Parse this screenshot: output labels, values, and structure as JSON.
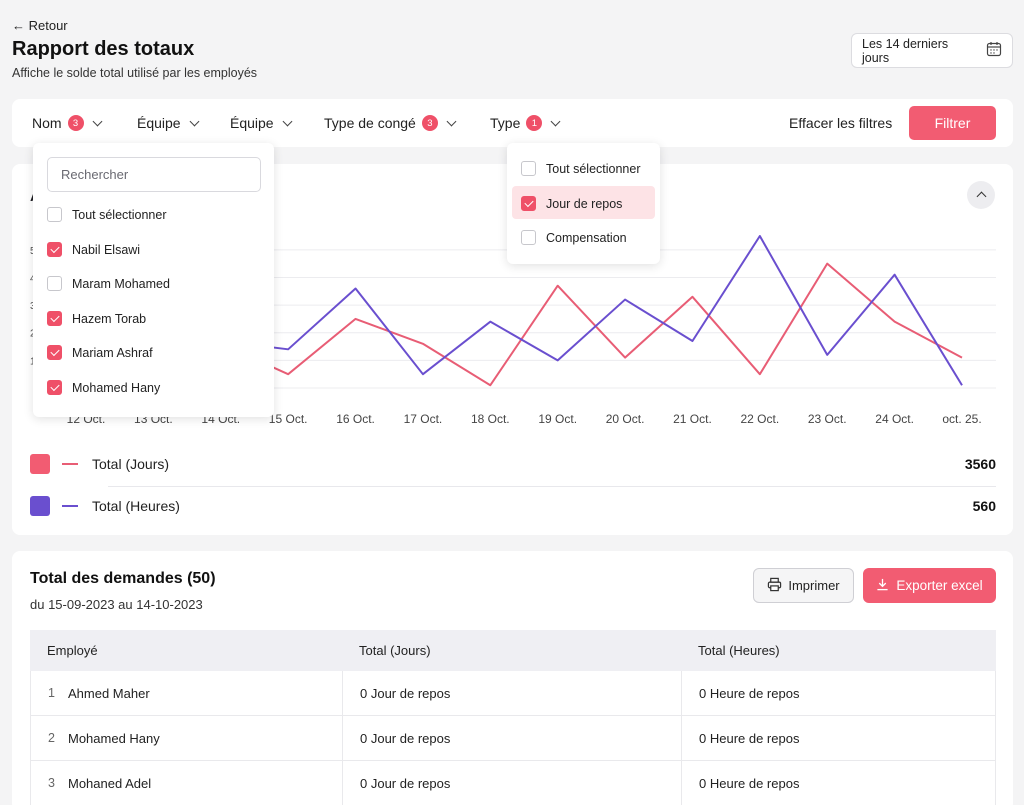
{
  "header": {
    "back_label": "← Retour",
    "title": "Rapport des totaux",
    "subtitle": "Affiche le solde total utilisé par les employés",
    "date_range_label": "Les 14 derniers jours"
  },
  "filters": {
    "items": [
      {
        "label": "Nom",
        "badge": "3"
      },
      {
        "label": "Équipe",
        "badge": ""
      },
      {
        "label": "Équipe",
        "badge": ""
      },
      {
        "label": "Type de congé",
        "badge": "3"
      },
      {
        "label": "Type",
        "badge": "1"
      }
    ],
    "clear_label": "Effacer les filtres",
    "apply_label": "Filtrer"
  },
  "name_dropdown": {
    "search_placeholder": "Rechercher",
    "options": [
      {
        "label": "Tout sélectionner",
        "checked": false
      },
      {
        "label": "Nabil Elsawi",
        "checked": true
      },
      {
        "label": "Maram Mohamed",
        "checked": false
      },
      {
        "label": "Hazem Torab",
        "checked": true
      },
      {
        "label": "Mariam Ashraf",
        "checked": true
      },
      {
        "label": "Mohamed Hany",
        "checked": true
      }
    ]
  },
  "type_dropdown": {
    "options": [
      {
        "label": "Tout sélectionner",
        "checked": false
      },
      {
        "label": "Jour de repos",
        "checked": true
      },
      {
        "label": "Compensation",
        "checked": false
      }
    ]
  },
  "chart_data": {
    "type": "line",
    "title": "",
    "x": [
      "12 Oct.",
      "13 Oct.",
      "14 Oct.",
      "15 Oct.",
      "16 Oct.",
      "17 Oct.",
      "18 Oct.",
      "19 Oct.",
      "20 Oct.",
      "21 Oct.",
      "22 Oct.",
      "23 Oct.",
      "24 Oct.",
      "oct. 25."
    ],
    "yticks_visible": [
      "5",
      "4",
      "3",
      "2",
      "1"
    ],
    "ylim": [
      0,
      5.5
    ],
    "grid": true,
    "legend": "bottom",
    "series": [
      {
        "name": "Total (Jours)",
        "color": "#e85d75",
        "values": [
          null,
          null,
          1.6,
          0.5,
          2.5,
          1.6,
          0.1,
          3.7,
          1.1,
          3.3,
          0.5,
          4.5,
          2.4,
          1.1
        ]
      },
      {
        "name": "Total (Heures)",
        "color": "#6a4fcf",
        "values": [
          null,
          null,
          1.7,
          1.4,
          3.6,
          0.5,
          2.4,
          1.0,
          3.2,
          1.7,
          5.5,
          1.2,
          4.1,
          0.1
        ]
      }
    ]
  },
  "chart_legend": [
    {
      "label": "Total (Jours)",
      "total": "3560",
      "color": "#f25c72"
    },
    {
      "label": "Total (Heures)",
      "total": "560",
      "color": "#6a4fcf"
    }
  ],
  "requests": {
    "title": "Total des demandes (50)",
    "range": "du 15-09-2023 au 14-10-2023",
    "print_label": "Imprimer",
    "export_label": "Exporter excel",
    "columns": [
      "Employé",
      "Total (Jours)",
      "Total (Heures)"
    ],
    "rows": [
      {
        "num": "1",
        "name": "Ahmed Maher",
        "days": "0 Jour de repos",
        "hours": "0 Heure de repos"
      },
      {
        "num": "2",
        "name": "Mohamed Hany",
        "days": "0 Jour de repos",
        "hours": "0 Heure de repos"
      },
      {
        "num": "3",
        "name": "Mohaned Adel",
        "days": "0 Jour de repos",
        "hours": "0 Heure de repos"
      }
    ]
  }
}
